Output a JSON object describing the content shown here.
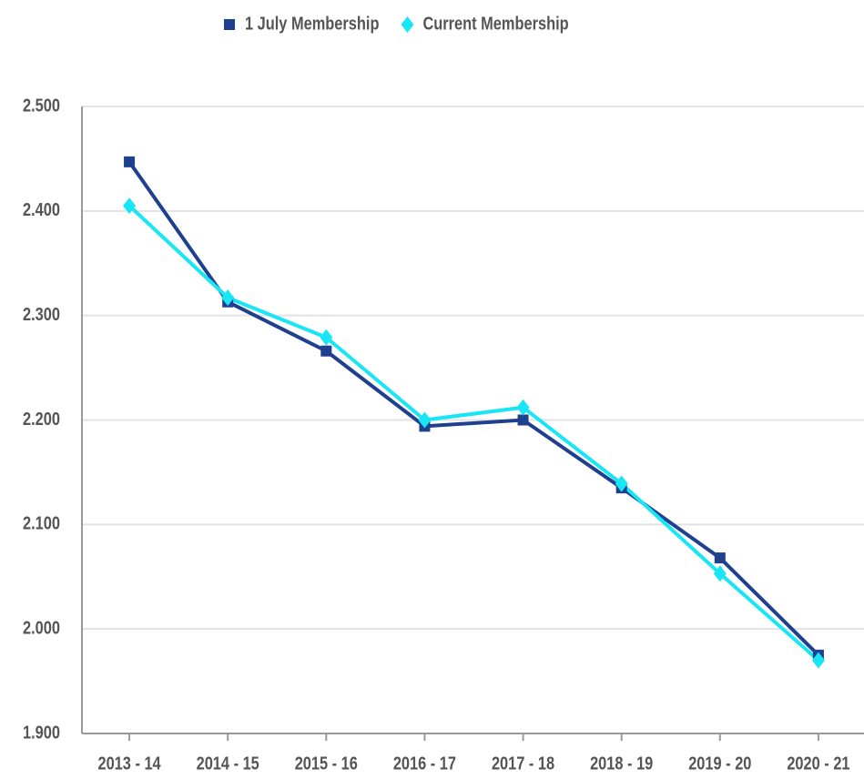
{
  "chart_data": {
    "type": "line",
    "categories": [
      "2013 - 14",
      "2014 - 15",
      "2015 - 16",
      "2016 - 17",
      "2017 - 18",
      "2018 - 19",
      "2019 - 20",
      "2020 - 21"
    ],
    "series": [
      {
        "name": "1 July Membership",
        "color": "#1f3f8f",
        "marker": "square",
        "values": [
          2447,
          2313,
          2266,
          2194,
          2200,
          2135,
          2068,
          1975
        ]
      },
      {
        "name": "Current Membership",
        "color": "#19e6f5",
        "marker": "diamond",
        "values": [
          2405,
          2317,
          2279,
          2200,
          2212,
          2139,
          2053,
          1970
        ]
      }
    ],
    "ylim": [
      1900,
      2500
    ],
    "yticks": [
      {
        "value": 1900,
        "label": "1.900"
      },
      {
        "value": 2000,
        "label": "2.000"
      },
      {
        "value": 2100,
        "label": "2.100"
      },
      {
        "value": 2200,
        "label": "2.200"
      },
      {
        "value": 2300,
        "label": "2.300"
      },
      {
        "value": 2400,
        "label": "2.400"
      },
      {
        "value": 2500,
        "label": "2.500"
      }
    ],
    "grid": true,
    "legend": "top"
  }
}
